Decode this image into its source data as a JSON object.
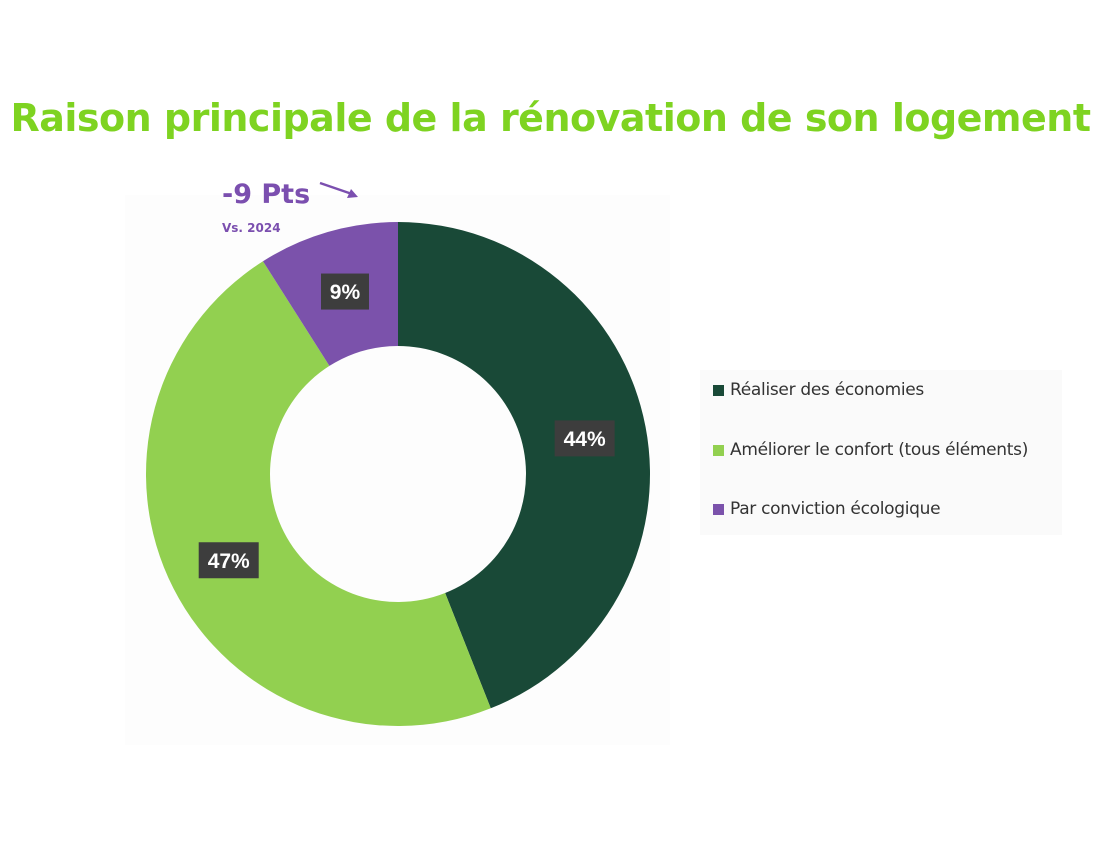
{
  "title": "Raison principale de la rénovation de son logement",
  "annotation": {
    "main": "-9 Pts",
    "sub": "Vs. 2024",
    "arrow_icon": "arrow-down-right-icon"
  },
  "colors": {
    "title": "#7ED321",
    "annotation": "#7B4FAF",
    "label_box": "#3d3d3d",
    "label_text": "#ffffff"
  },
  "chart_data": {
    "type": "pie",
    "variant": "donut",
    "title": "Raison principale de la rénovation de son logement",
    "categories": [
      "Réaliser des économies",
      "Améliorer le confort (tous éléments)",
      "Par conviction écologique"
    ],
    "values": [
      44,
      47,
      9
    ],
    "labels": [
      "44%",
      "47%",
      "9%"
    ],
    "colors": [
      "#194937",
      "#92D050",
      "#7B52AB"
    ],
    "start_angle_deg": 0,
    "direction": "clockwise",
    "legend_position": "right"
  }
}
